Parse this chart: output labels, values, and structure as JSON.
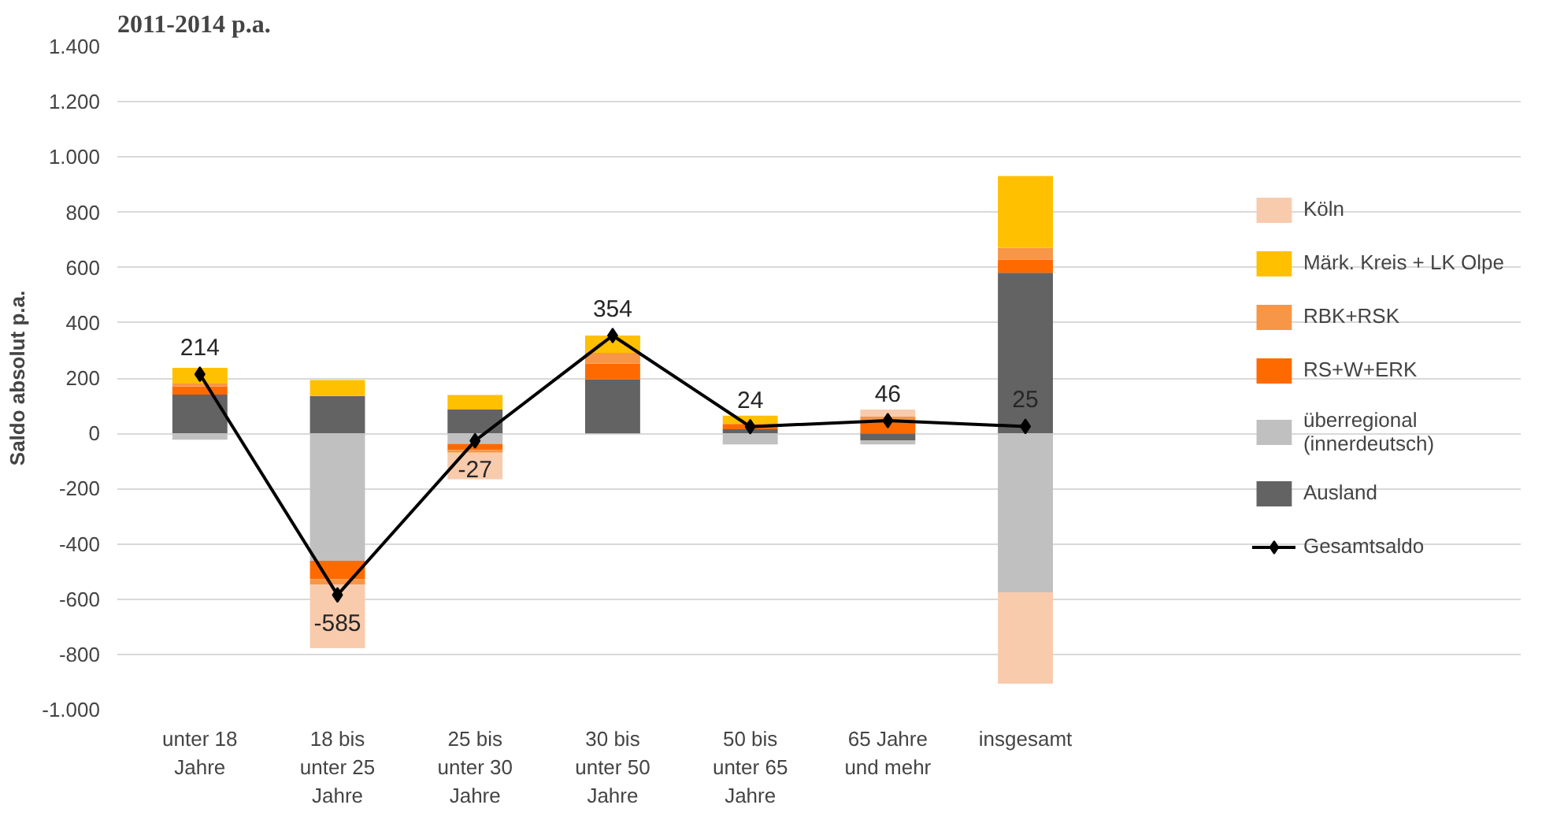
{
  "chart_data": {
    "type": "bar",
    "stacked": true,
    "title": "2011-2014 p.a.",
    "ylabel": "Saldo absolut p.a.",
    "categories": [
      "unter 18 Jahre",
      "18 bis unter 25 Jahre",
      "25 bis unter 30 Jahre",
      "30 bis unter 50 Jahre",
      "50 bis unter 65 Jahre",
      "65 Jahre und mehr",
      "insgesamt"
    ],
    "series": [
      {
        "name": "Ausland",
        "color": "#636363",
        "values": [
          140,
          135,
          86,
          196,
          15,
          -25,
          581
        ]
      },
      {
        "name": "überregional (innerdeutsch)",
        "color": "#c0c0c0",
        "values": [
          -23,
          -461,
          -38,
          0,
          -40,
          -15,
          -575
        ]
      },
      {
        "name": "RS+W+ERK",
        "color": "#ff6a00",
        "values": [
          30,
          -67,
          -23,
          57,
          19,
          45,
          48
        ]
      },
      {
        "name": "RBK+RSK",
        "color": "#f79646",
        "values": [
          10,
          -19,
          -9,
          38,
          0,
          15,
          42
        ]
      },
      {
        "name": "Märk. Kreis + LK Olpe",
        "color": "#ffc000",
        "values": [
          57,
          58,
          53,
          63,
          30,
          0,
          260
        ]
      },
      {
        "name": "Köln",
        "color": "#f8cbad",
        "values": [
          0,
          -231,
          -96,
          0,
          0,
          26,
          -331
        ]
      },
      {
        "name": "Gesamtsaldo",
        "type": "line",
        "color": "#000000",
        "marker": "diamond",
        "data_labels": true,
        "values": [
          214,
          -585,
          -27,
          354,
          24,
          46,
          25
        ]
      }
    ],
    "ylim": [
      -1000,
      1400
    ],
    "yticks": [
      {
        "value": -1000,
        "label": "-1.000"
      },
      -800,
      -600,
      -400,
      -200,
      0,
      200,
      400,
      600,
      800,
      {
        "value": 1000,
        "label": "1.000"
      },
      {
        "value": 1200,
        "label": "1.200"
      },
      {
        "value": 1400,
        "label": "1.400"
      }
    ],
    "grid": "y",
    "legend": "right"
  }
}
